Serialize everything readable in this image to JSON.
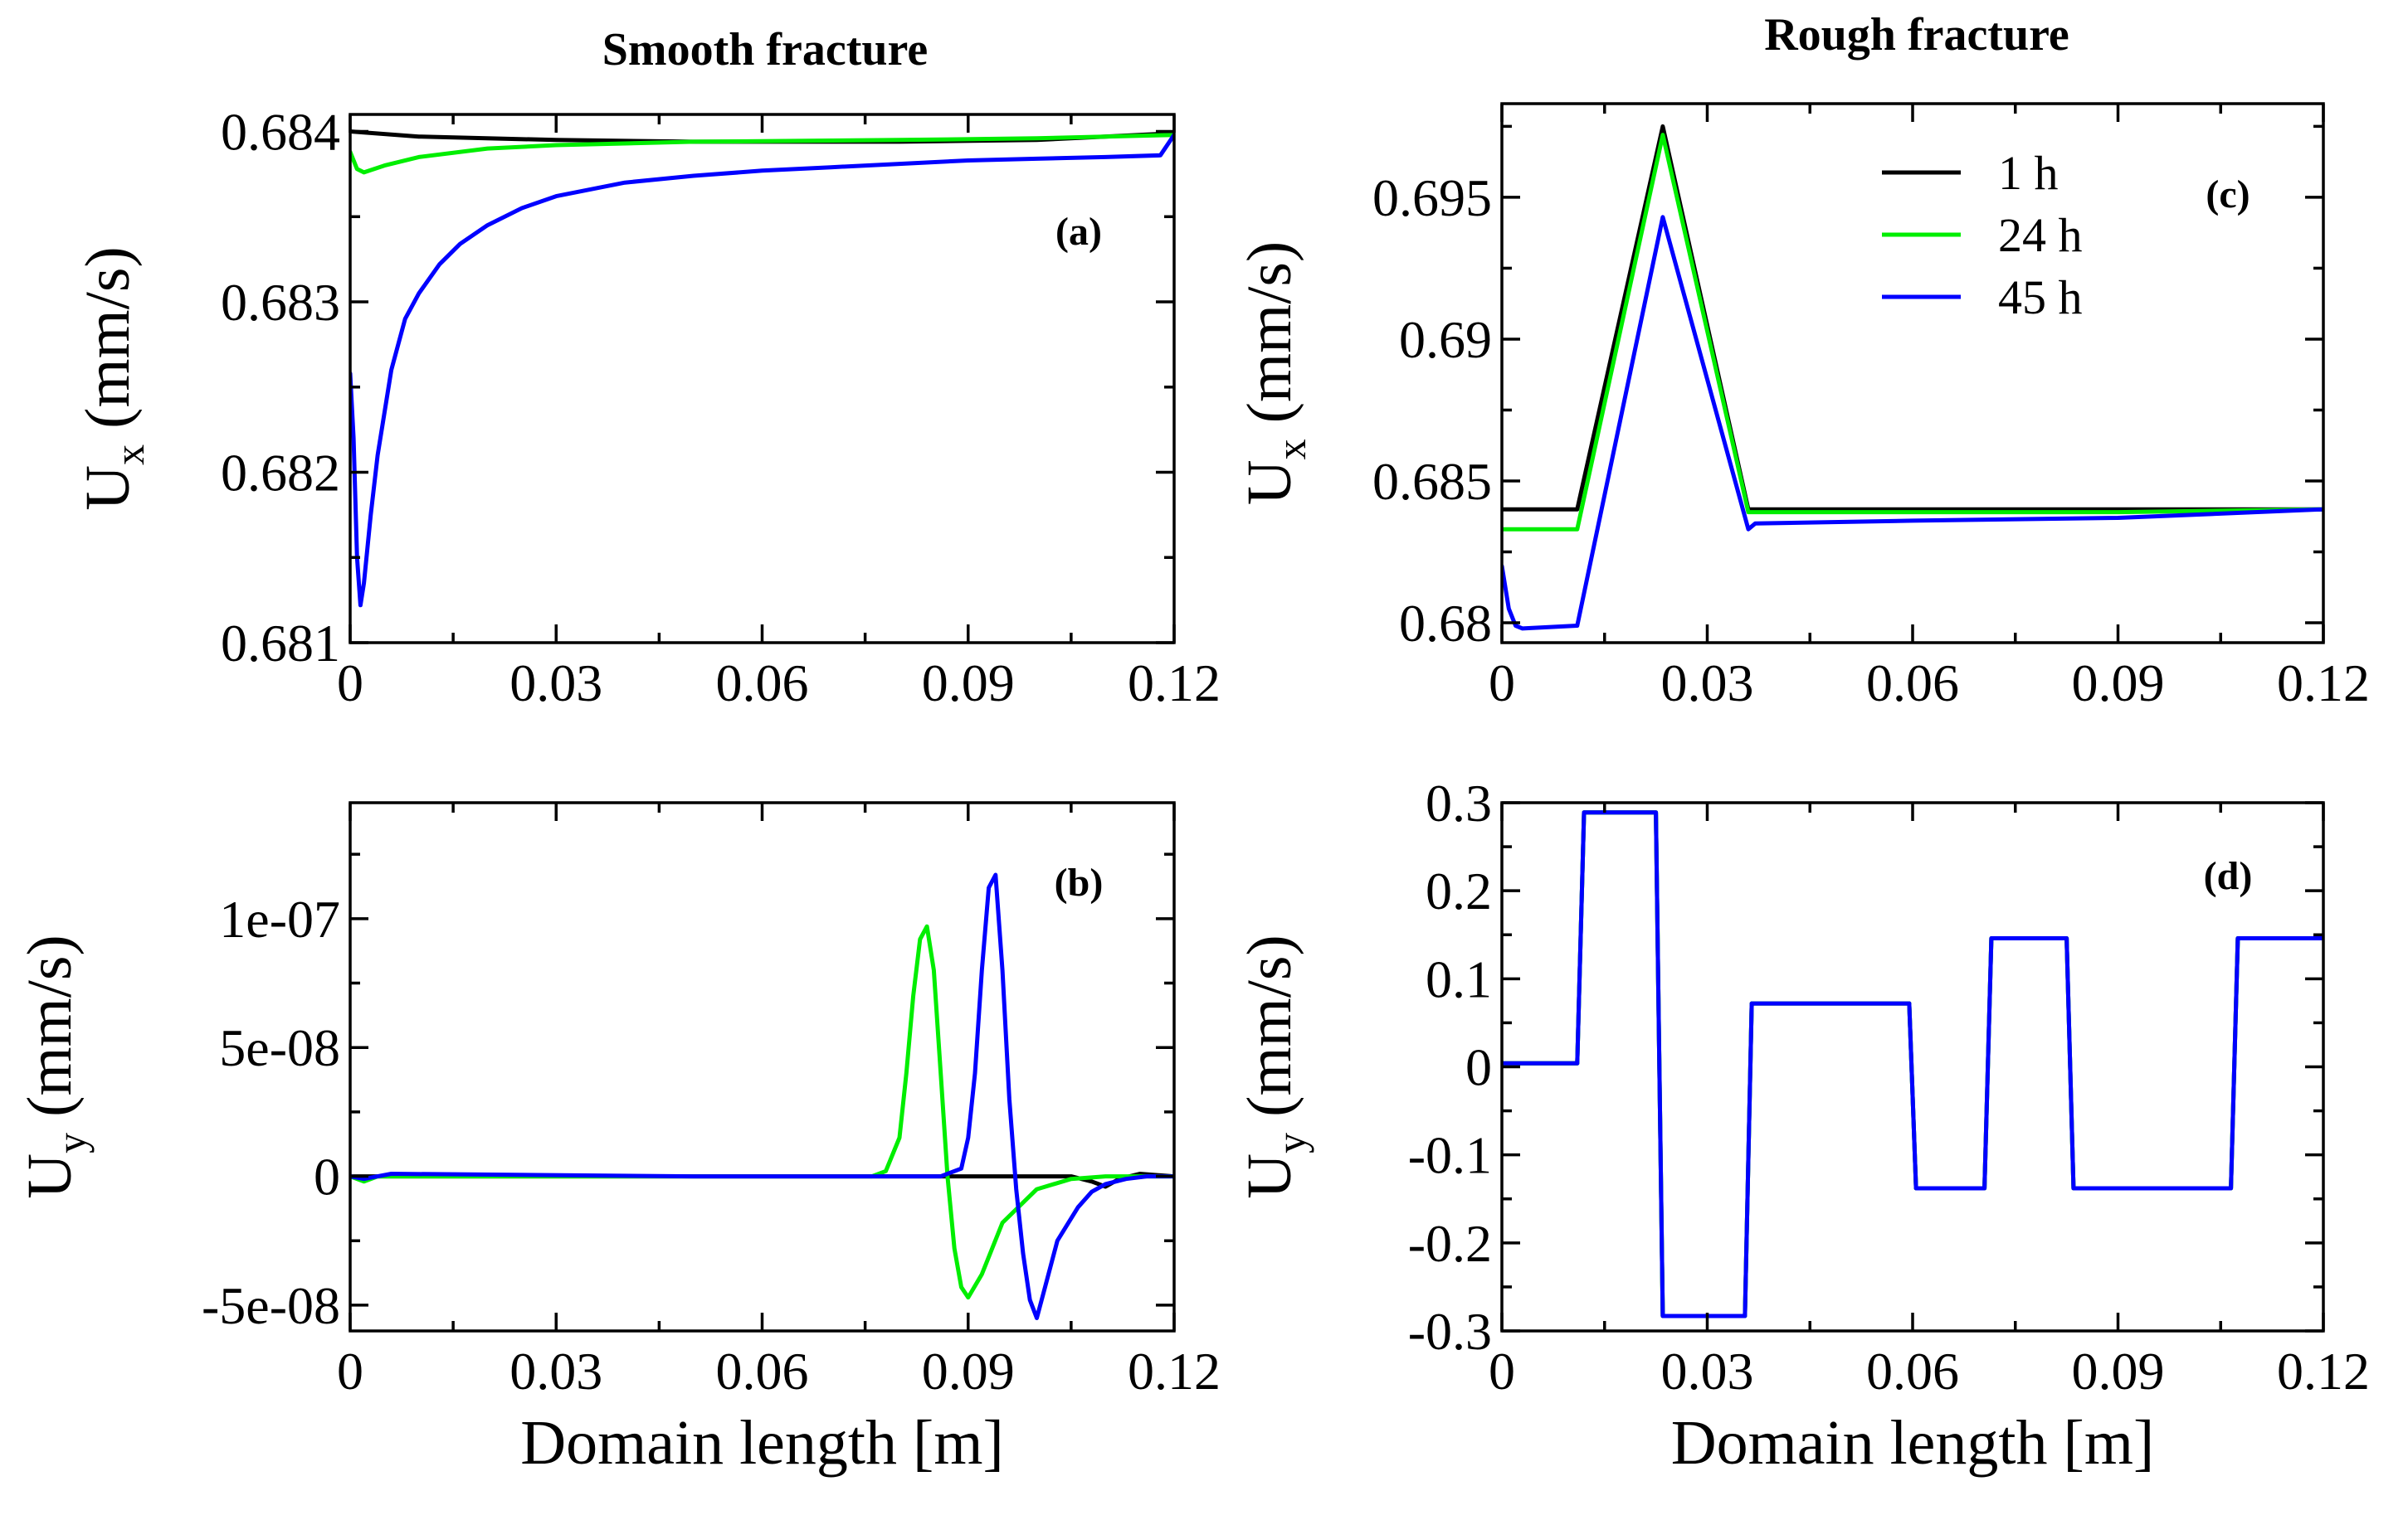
{
  "colors": {
    "h1": "#000000",
    "h24": "#00ee00",
    "h45": "#0000ff"
  },
  "column_titles": {
    "left": "Smooth fracture",
    "right": "Rough fracture"
  },
  "chart_data": [
    {
      "id": "a",
      "type": "line",
      "tag": "(a)",
      "column": "Smooth fracture",
      "ylabel_main": "U",
      "ylabel_sub": "x",
      "ylabel_unit": " (mm/s)",
      "xlabel": "",
      "xlim": [
        0,
        0.12
      ],
      "ylim": [
        0.681,
        0.6841
      ],
      "xticks": [
        0,
        0.03,
        0.06,
        0.09,
        0.12
      ],
      "xtick_labels": [
        "0",
        "0.03",
        "0.06",
        "0.09",
        "0.12"
      ],
      "yticks": [
        0.681,
        0.682,
        0.683,
        0.684
      ],
      "ytick_labels": [
        "0.681",
        "0.682",
        "0.683",
        "0.684"
      ],
      "series": [
        {
          "name": "1 h",
          "color": "#000000",
          "x": [
            0,
            0.01,
            0.03,
            0.05,
            0.08,
            0.1,
            0.12
          ],
          "y": [
            0.684,
            0.68397,
            0.68395,
            0.68394,
            0.68394,
            0.68395,
            0.68399
          ]
        },
        {
          "name": "24 h",
          "color": "#00ee00",
          "x": [
            0,
            0.001,
            0.002,
            0.005,
            0.01,
            0.02,
            0.03,
            0.05,
            0.08,
            0.1,
            0.12
          ],
          "y": [
            0.68388,
            0.68378,
            0.68376,
            0.6838,
            0.68385,
            0.6839,
            0.68392,
            0.68394,
            0.68395,
            0.68396,
            0.68398
          ]
        },
        {
          "name": "45 h",
          "color": "#0000ff",
          "x": [
            0,
            0.0005,
            0.001,
            0.0015,
            0.002,
            0.003,
            0.004,
            0.006,
            0.008,
            0.01,
            0.013,
            0.016,
            0.02,
            0.025,
            0.03,
            0.04,
            0.05,
            0.06,
            0.07,
            0.08,
            0.09,
            0.1,
            0.11,
            0.118,
            0.12
          ],
          "y": [
            0.68258,
            0.6822,
            0.6815,
            0.68122,
            0.68135,
            0.68175,
            0.6821,
            0.6826,
            0.6829,
            0.68305,
            0.68322,
            0.68334,
            0.68345,
            0.68355,
            0.68362,
            0.6837,
            0.68374,
            0.68377,
            0.68379,
            0.68381,
            0.68383,
            0.68384,
            0.68385,
            0.68386,
            0.68398
          ]
        }
      ]
    },
    {
      "id": "b",
      "type": "line",
      "tag": "(b)",
      "column": "Smooth fracture",
      "ylabel_main": "U",
      "ylabel_sub": "y",
      "ylabel_unit": " (mm/s)",
      "xlabel": "Domain length [m]",
      "xlim": [
        0,
        0.12
      ],
      "ylim": [
        -6e-08,
        1.45e-07
      ],
      "xticks": [
        0,
        0.03,
        0.06,
        0.09,
        0.12
      ],
      "xtick_labels": [
        "0",
        "0.03",
        "0.06",
        "0.09",
        "0.12"
      ],
      "yticks": [
        -5e-08,
        0,
        5e-08,
        1e-07
      ],
      "ytick_labels": [
        "-5e-08",
        "0",
        "5e-08",
        "1e-07"
      ],
      "series": [
        {
          "name": "1 h",
          "color": "#000000",
          "x": [
            0,
            0.05,
            0.06,
            0.085,
            0.1,
            0.105,
            0.108,
            0.11,
            0.112,
            0.115,
            0.12
          ],
          "y": [
            0,
            0,
            0,
            0,
            0,
            0,
            -2e-09,
            -4e-09,
            -1e-09,
            1e-09,
            0
          ]
        },
        {
          "name": "24 h",
          "color": "#00ee00",
          "x": [
            0,
            0.002,
            0.004,
            0.006,
            0.06,
            0.076,
            0.078,
            0.08,
            0.081,
            0.082,
            0.083,
            0.084,
            0.085,
            0.086,
            0.087,
            0.088,
            0.089,
            0.09,
            0.092,
            0.095,
            0.1,
            0.105,
            0.11,
            0.12
          ],
          "y": [
            0,
            -2e-09,
            0,
            0,
            0,
            0,
            2e-09,
            1.5e-08,
            4e-08,
            7e-08,
            9.2e-08,
            9.7e-08,
            8e-08,
            4e-08,
            0,
            -2.8e-08,
            -4.3e-08,
            -4.7e-08,
            -3.8e-08,
            -1.8e-08,
            -5e-09,
            -1e-09,
            0,
            0
          ]
        },
        {
          "name": "45 h",
          "color": "#0000ff",
          "x": [
            0,
            0.002,
            0.004,
            0.006,
            0.05,
            0.08,
            0.086,
            0.089,
            0.09,
            0.091,
            0.092,
            0.093,
            0.094,
            0.095,
            0.096,
            0.097,
            0.098,
            0.099,
            0.1,
            0.101,
            0.103,
            0.106,
            0.108,
            0.11,
            0.113,
            0.116,
            0.118,
            0.12
          ],
          "y": [
            0,
            -1e-09,
            0,
            1e-09,
            0,
            0,
            0,
            3e-09,
            1.5e-08,
            4e-08,
            8e-08,
            1.12e-07,
            1.17e-07,
            8e-08,
            3e-08,
            -5e-09,
            -3e-08,
            -4.8e-08,
            -5.5e-08,
            -4.5e-08,
            -2.5e-08,
            -1.2e-08,
            -6e-09,
            -3e-09,
            -1e-09,
            0,
            0,
            0
          ]
        }
      ]
    },
    {
      "id": "c",
      "type": "line",
      "tag": "(c)",
      "column": "Rough fracture",
      "ylabel_main": "U",
      "ylabel_sub": "x",
      "ylabel_unit": " (mm/s)",
      "xlabel": "",
      "xlim": [
        0,
        0.12
      ],
      "ylim": [
        0.6793,
        0.6983
      ],
      "xticks": [
        0,
        0.03,
        0.06,
        0.09,
        0.12
      ],
      "xtick_labels": [
        "0",
        "0.03",
        "0.06",
        "0.09",
        "0.12"
      ],
      "yticks": [
        0.68,
        0.685,
        0.69,
        0.695
      ],
      "ytick_labels": [
        "0.68",
        "0.685",
        "0.69",
        "0.695"
      ],
      "legend": {
        "placement": "top-right",
        "entries": [
          "1 h",
          "24 h",
          "45 h"
        ]
      },
      "series": [
        {
          "name": "1 h",
          "color": "#000000",
          "x": [
            0,
            0.011,
            0.0235,
            0.036,
            0.06,
            0.09,
            0.12
          ],
          "y": [
            0.684,
            0.684,
            0.6975,
            0.684,
            0.684,
            0.684,
            0.684
          ]
        },
        {
          "name": "24 h",
          "color": "#00ee00",
          "x": [
            0,
            0.011,
            0.0235,
            0.036,
            0.06,
            0.09,
            0.12
          ],
          "y": [
            0.6833,
            0.6833,
            0.6972,
            0.6839,
            0.6839,
            0.6839,
            0.684
          ]
        },
        {
          "name": "45 h",
          "color": "#0000ff",
          "x": [
            0,
            0.001,
            0.002,
            0.003,
            0.011,
            0.0235,
            0.036,
            0.037,
            0.06,
            0.09,
            0.12
          ],
          "y": [
            0.682,
            0.6805,
            0.6799,
            0.6798,
            0.6799,
            0.6943,
            0.6833,
            0.6835,
            0.6836,
            0.6837,
            0.684
          ]
        }
      ]
    },
    {
      "id": "d",
      "type": "line",
      "tag": "(d)",
      "column": "Rough fracture",
      "ylabel_main": "U",
      "ylabel_sub": "y",
      "ylabel_unit": " (mm/s)",
      "xlabel": "Domain length [m]",
      "xlim": [
        0,
        0.12
      ],
      "ylim": [
        -0.3,
        0.3
      ],
      "xticks": [
        0,
        0.03,
        0.06,
        0.09,
        0.12
      ],
      "xtick_labels": [
        "0",
        "0.03",
        "0.06",
        "0.09",
        "0.12"
      ],
      "yticks": [
        -0.3,
        -0.2,
        -0.1,
        0,
        0.1,
        0.2,
        0.3
      ],
      "ytick_labels": [
        "-0.3",
        "-0.2",
        "-0.1",
        "0",
        "0.1",
        "0.2",
        "0.3"
      ],
      "series": [
        {
          "name": "1 h",
          "color": "#000000",
          "x": [
            0,
            0.011,
            0.012,
            0.0225,
            0.0235,
            0.0355,
            0.0365,
            0.0595,
            0.0605,
            0.0705,
            0.0715,
            0.0825,
            0.0835,
            0.1065,
            0.1075,
            0.12
          ],
          "y": [
            0.004,
            0.004,
            0.289,
            0.289,
            -0.283,
            -0.283,
            0.072,
            0.072,
            -0.138,
            -0.138,
            0.146,
            0.146,
            -0.138,
            -0.138,
            0.146,
            0.146
          ]
        },
        {
          "name": "24 h",
          "color": "#00ee00",
          "x": [
            0,
            0.011,
            0.012,
            0.0225,
            0.0235,
            0.0355,
            0.0365,
            0.0595,
            0.0605,
            0.0705,
            0.0715,
            0.0825,
            0.0835,
            0.1065,
            0.1075,
            0.12
          ],
          "y": [
            0.004,
            0.004,
            0.289,
            0.289,
            -0.283,
            -0.283,
            0.072,
            0.072,
            -0.138,
            -0.138,
            0.146,
            0.146,
            -0.138,
            -0.138,
            0.146,
            0.146
          ]
        },
        {
          "name": "45 h",
          "color": "#0000ff",
          "x": [
            0,
            0.011,
            0.012,
            0.0225,
            0.0235,
            0.0355,
            0.0365,
            0.0595,
            0.0605,
            0.0705,
            0.0715,
            0.0825,
            0.0835,
            0.1065,
            0.1075,
            0.12
          ],
          "y": [
            0.004,
            0.004,
            0.289,
            0.289,
            -0.283,
            -0.283,
            0.072,
            0.072,
            -0.138,
            -0.138,
            0.146,
            0.146,
            -0.138,
            -0.138,
            0.146,
            0.146
          ]
        }
      ]
    }
  ]
}
